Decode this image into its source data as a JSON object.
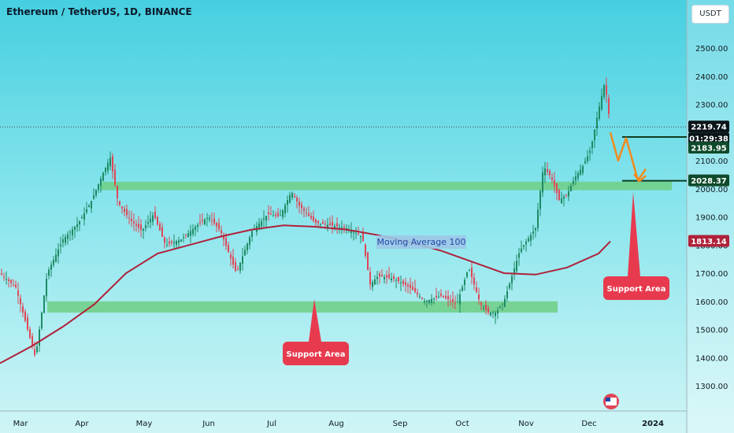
{
  "title": "Ethereum / TetherUS, 1D, BINANCE",
  "currency_button": "USDT",
  "colors": {
    "up": "#1e8a63",
    "down": "#e04656",
    "ma": "#b0213a",
    "zone": "#6fcf84"
  },
  "chart_data": {
    "type": "candlestick",
    "title": "Ethereum / TetherUS, 1D, BINANCE",
    "y_axis_ticks": [
      "2500.00",
      "2400.00",
      "2300.00",
      "2200.00",
      "2100.00",
      "2000.00",
      "1900.00",
      "1800.00",
      "1700.00",
      "1600.00",
      "1500.00",
      "1400.00",
      "1300.00"
    ],
    "x_axis_ticks": [
      "Mar",
      "Apr",
      "May",
      "Jun",
      "Jul",
      "Aug",
      "Sep",
      "Oct",
      "Nov",
      "Dec",
      "2024"
    ],
    "ylim": [
      1240,
      2610
    ],
    "price_tags": {
      "last_price": "2219.74",
      "countdown": "01:29:38",
      "level_high": "2183.95",
      "level_low": "2028.37",
      "ma_value": "1813.14"
    },
    "moving_average_label": "Moving Average 100",
    "support_label": "Support Area",
    "series": [
      {
        "name": "Moving Average 100",
        "x": [
          0,
          40,
          80,
          120,
          160,
          200,
          240,
          280,
          320,
          360,
          400,
          440,
          480,
          520,
          560,
          600,
          640,
          680,
          720,
          760,
          775
        ],
        "values": [
          1380,
          1440,
          1510,
          1590,
          1700,
          1770,
          1800,
          1830,
          1855,
          1870,
          1865,
          1855,
          1835,
          1810,
          1780,
          1740,
          1700,
          1695,
          1720,
          1770,
          1813.14
        ]
      },
      {
        "name": "price",
        "x": [
          0,
          20,
          45,
          60,
          80,
          100,
          115,
          130,
          140,
          150,
          165,
          180,
          195,
          210,
          230,
          250,
          265,
          280,
          300,
          320,
          340,
          355,
          370,
          380,
          400,
          420,
          440,
          460,
          470,
          480,
          500,
          520,
          540,
          560,
          580,
          595,
          610,
          620,
          630,
          640,
          660,
          680,
          690,
          700,
          710,
          720,
          730,
          740,
          750,
          760,
          768,
          775
        ],
        "values": [
          1700,
          1650,
          1400,
          1700,
          1820,
          1880,
          1950,
          2050,
          2110,
          1950,
          1890,
          1850,
          1910,
          1800,
          1820,
          1870,
          1900,
          1850,
          1700,
          1850,
          1910,
          1900,
          1990,
          1940,
          1880,
          1870,
          1860,
          1830,
          1660,
          1690,
          1680,
          1650,
          1600,
          1620,
          1590,
          1720,
          1590,
          1560,
          1560,
          1600,
          1780,
          1860,
          2080,
          2040,
          1960,
          1980,
          2040,
          2080,
          2140,
          2280,
          2380,
          2220
        ]
      }
    ],
    "zones": [
      {
        "label": "Support Area",
        "from": 1995,
        "to": 2025,
        "x_start": 127,
        "x_end": 853
      },
      {
        "label": "Support Area",
        "from": 1560,
        "to": 1600,
        "x_start": 60,
        "x_end": 708
      }
    ],
    "horizontal_levels": [
      2183.95,
      2028.37
    ],
    "projection": {
      "x": [
        775,
        785,
        795,
        810,
        820
      ],
      "values": [
        2200,
        2100,
        2180,
        2030,
        2070
      ]
    }
  }
}
